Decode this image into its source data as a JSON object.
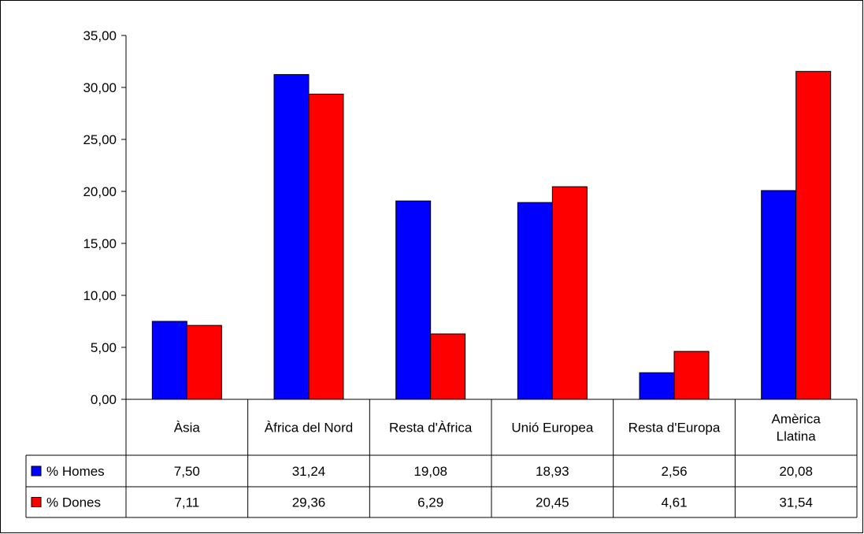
{
  "chart_data": {
    "type": "bar",
    "categories": [
      [
        "Àsia"
      ],
      [
        "Àfrica del Nord"
      ],
      [
        "Resta d'Àfrica"
      ],
      [
        "Unió Europea"
      ],
      [
        "Resta d'Europa"
      ],
      [
        "Amèrica",
        "Llatina"
      ]
    ],
    "series": [
      {
        "name": "% Homes",
        "color": "#0000ff",
        "values": [
          7.5,
          31.24,
          19.08,
          18.93,
          2.56,
          20.08
        ],
        "labels": [
          "7,50",
          "31,24",
          "19,08",
          "18,93",
          "2,56",
          "20,08"
        ]
      },
      {
        "name": "% Dones",
        "color": "#ff0000",
        "values": [
          7.11,
          29.36,
          6.29,
          20.45,
          4.61,
          31.54
        ],
        "labels": [
          "7,11",
          "29,36",
          "6,29",
          "20,45",
          "4,61",
          "31,54"
        ]
      }
    ],
    "ylim": [
      0,
      35
    ],
    "yticks": [
      "0,00",
      "5,00",
      "10,00",
      "15,00",
      "20,00",
      "25,00",
      "30,00",
      "35,00"
    ],
    "grid": false,
    "legend": "data-table",
    "title": "",
    "xlabel": "",
    "ylabel": ""
  }
}
